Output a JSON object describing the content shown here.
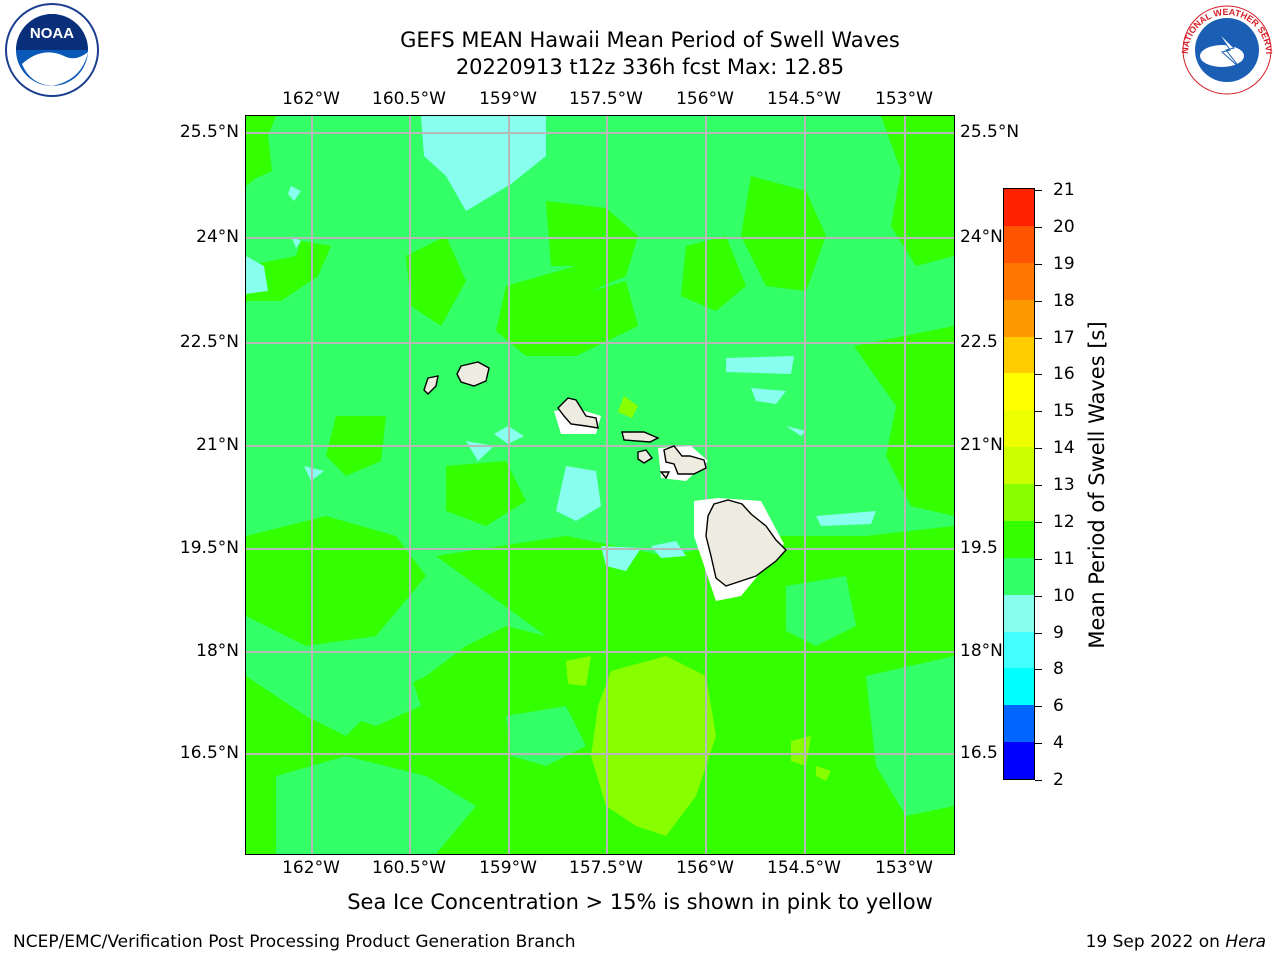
{
  "title": {
    "line1": "GEFS MEAN Hawaii Mean Period of Swell Waves",
    "line2": "20220913 t12z 336h fcst   Max: 12.85"
  },
  "axes": {
    "lon_labels": [
      "162°W",
      "160.5°W",
      "159°W",
      "157.5°W",
      "156°W",
      "154.5°W",
      "153°W"
    ],
    "lat_labels": [
      "25.5°N",
      "24°N",
      "22.5°N",
      "21°N",
      "19.5°N",
      "18°N",
      "16.5°N"
    ],
    "right_lat_labels": [
      "25.5°N",
      "24°N",
      "22.5",
      "21°N",
      "19.5",
      "18°N",
      "16.5"
    ],
    "gridlines": true
  },
  "colorbar": {
    "title": "Mean Period of Swell Waves [s]",
    "ticks": [
      "2",
      "4",
      "6",
      "8",
      "9",
      "10",
      "11",
      "12",
      "13",
      "14",
      "15",
      "16",
      "17",
      "18",
      "19",
      "20",
      "21"
    ],
    "colors": [
      "#0000ff",
      "#0066ff",
      "#00ffff",
      "#44ffff",
      "#88ffee",
      "#33ff66",
      "#33ff00",
      "#88ff00",
      "#ccff00",
      "#eeff00",
      "#ffff00",
      "#ffcc00",
      "#ff9900",
      "#ff7700",
      "#ff5500",
      "#ff2200",
      "#ff0000"
    ]
  },
  "map": {
    "region": "Hawaii",
    "field": "Mean Period of Swell Waves",
    "units": "s",
    "max_value": 12.85,
    "land_color": "#eeebe0",
    "ocean_dominant_color": "#33ff66"
  },
  "note": "Sea Ice Concentration > 15% is shown in pink to yellow",
  "footer": {
    "left": "NCEP/EMC/Verification Post Processing Product Generation Branch",
    "right_prefix": "19 Sep 2022 on ",
    "right_host": "Hera"
  },
  "logos": {
    "noaa_text": "NOAA",
    "nws_text": "NATIONAL WEATHER SERVICE"
  }
}
